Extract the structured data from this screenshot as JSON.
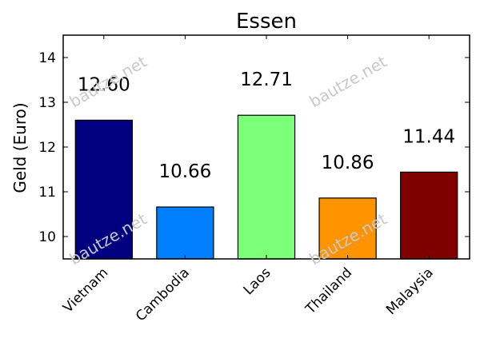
{
  "chart_data": {
    "type": "bar",
    "title": "Essen",
    "xlabel": "",
    "ylabel": "Geld (Euro)",
    "ylim": [
      9.5,
      14.5
    ],
    "yticks": [
      10,
      11,
      12,
      13,
      14
    ],
    "categories": [
      "Vietnam",
      "Cambodia",
      "Laos",
      "Thailand",
      "Malaysia"
    ],
    "values": [
      12.6,
      10.66,
      12.71,
      10.86,
      11.44
    ],
    "data_labels": [
      "12.60",
      "10.66",
      "12.71",
      "10.86",
      "11.44"
    ],
    "colors": [
      "#000080",
      "#0080ff",
      "#7cff79",
      "#ff9400",
      "#800000"
    ],
    "grid": false,
    "legend": "none"
  },
  "watermark": "bautze.net"
}
